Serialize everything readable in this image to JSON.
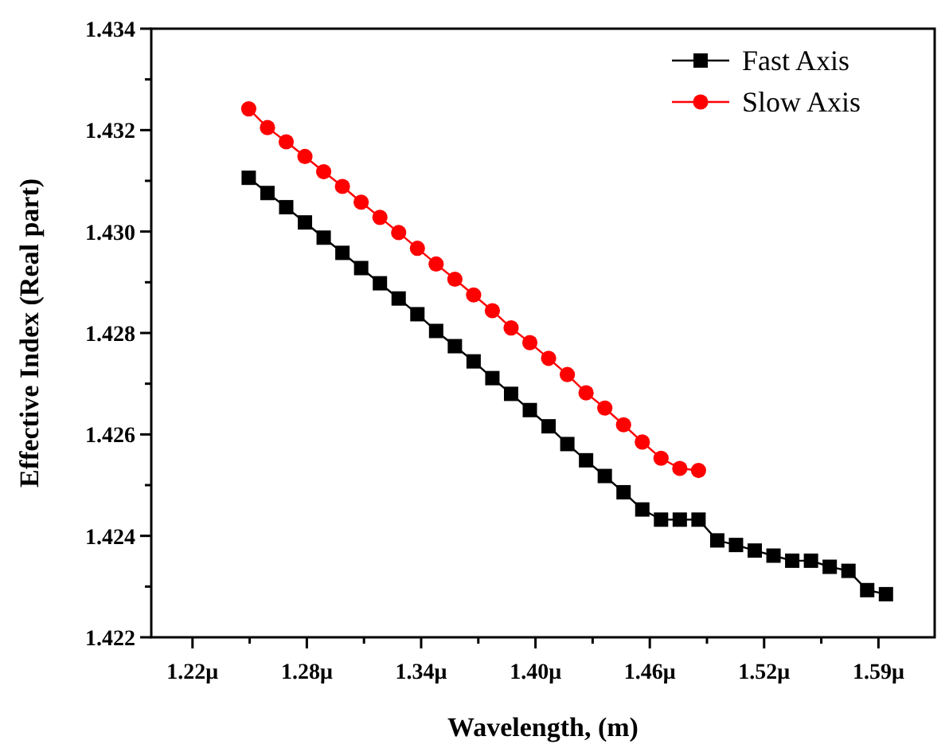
{
  "chart_data": {
    "type": "line",
    "xlabel": "Wavelength, (m)",
    "ylabel": "Effective Index (Real part)",
    "xlim": [
      1.198,
      1.616
    ],
    "ylim": [
      1.422,
      1.434
    ],
    "xticks": [
      {
        "value": 1.22,
        "label": "1.22μ"
      },
      {
        "value": 1.2505,
        "label": null
      },
      {
        "value": 1.281,
        "label": "1.28μ"
      },
      {
        "value": 1.3115,
        "label": null
      },
      {
        "value": 1.342,
        "label": "1.34μ"
      },
      {
        "value": 1.3725,
        "label": null
      },
      {
        "value": 1.403,
        "label": "1.40μ"
      },
      {
        "value": 1.4335,
        "label": null
      },
      {
        "value": 1.464,
        "label": "1.46μ"
      },
      {
        "value": 1.4945,
        "label": null
      },
      {
        "value": 1.525,
        "label": "1.52μ"
      },
      {
        "value": 1.5555,
        "label": null
      },
      {
        "value": 1.586,
        "label": "1.59μ"
      }
    ],
    "yticks": [
      1.422,
      {
        "value": 1.423,
        "label": null
      },
      1.424,
      {
        "value": 1.425,
        "label": null
      },
      1.426,
      {
        "value": 1.427,
        "label": null
      },
      1.428,
      {
        "value": 1.429,
        "label": null
      },
      {
        "value": 1.43,
        "label": "1.430"
      },
      {
        "value": 1.431,
        "label": null
      },
      1.432,
      {
        "value": 1.433,
        "label": null
      },
      1.434
    ],
    "grid": false,
    "legend": "top right",
    "line_style": "solid",
    "series": [
      {
        "name": "Fast Axis",
        "color": "#000000",
        "marker": "square",
        "x": [
          1.25,
          1.26,
          1.27,
          1.28,
          1.29,
          1.3,
          1.31,
          1.32,
          1.33,
          1.34,
          1.35,
          1.36,
          1.37,
          1.38,
          1.39,
          1.4,
          1.41,
          1.42,
          1.43,
          1.44,
          1.45,
          1.46,
          1.47,
          1.48,
          1.49,
          1.5,
          1.51,
          1.52,
          1.53,
          1.54,
          1.55,
          1.56,
          1.57,
          1.58,
          1.59
        ],
        "values": [
          1.43106,
          1.43076,
          1.43048,
          1.43018,
          1.42988,
          1.42958,
          1.42928,
          1.42898,
          1.42868,
          1.42837,
          1.42804,
          1.42774,
          1.42744,
          1.42711,
          1.4268,
          1.42648,
          1.42616,
          1.42581,
          1.42549,
          1.42518,
          1.42486,
          1.42452,
          1.42432,
          1.42432,
          1.42432,
          1.42391,
          1.42382,
          1.42371,
          1.42361,
          1.42351,
          1.42351,
          1.42339,
          1.42331,
          1.42293,
          1.42285
        ]
      },
      {
        "name": "Slow Axis",
        "color": "#ff0000",
        "marker": "circle",
        "x": [
          1.25,
          1.26,
          1.27,
          1.28,
          1.29,
          1.3,
          1.31,
          1.32,
          1.33,
          1.34,
          1.35,
          1.36,
          1.37,
          1.38,
          1.39,
          1.4,
          1.41,
          1.42,
          1.43,
          1.44,
          1.45,
          1.46,
          1.47,
          1.48,
          1.49
        ],
        "values": [
          1.43242,
          1.43205,
          1.43177,
          1.43148,
          1.43118,
          1.43089,
          1.43058,
          1.43028,
          1.42998,
          1.42967,
          1.42936,
          1.42906,
          1.42875,
          1.42844,
          1.4281,
          1.42781,
          1.4275,
          1.42718,
          1.42682,
          1.42652,
          1.42619,
          1.42585,
          1.42553,
          1.42533,
          1.42529
        ]
      }
    ]
  }
}
